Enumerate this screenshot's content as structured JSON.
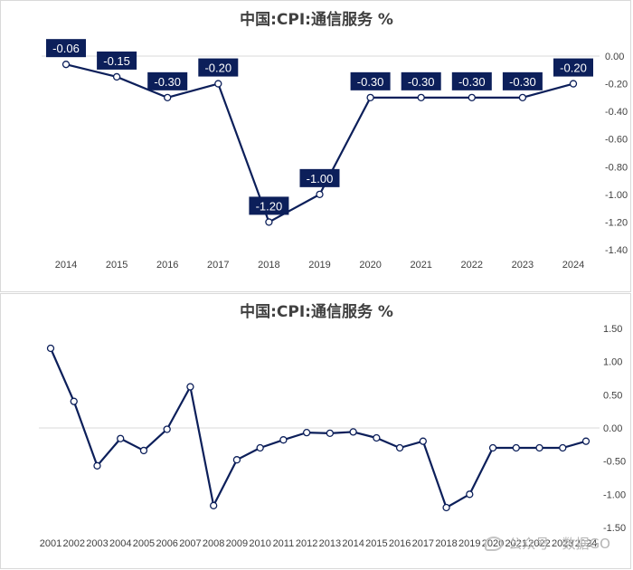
{
  "chart_data": [
    {
      "type": "line",
      "title": "中国:CPI:通信服务 %",
      "x": [
        "2014",
        "2015",
        "2016",
        "2017",
        "2018",
        "2019",
        "2020",
        "2021",
        "2022",
        "2023",
        "2024"
      ],
      "series": [
        {
          "values": [
            -0.06,
            -0.15,
            -0.3,
            -0.2,
            -1.2,
            -1.0,
            -0.3,
            -0.3,
            -0.3,
            -0.3,
            -0.2
          ]
        }
      ],
      "data_labels": [
        "-0.06",
        "-0.15",
        "-0.30",
        "-0.20",
        "-1.20",
        "-1.00",
        "-0.30",
        "-0.30",
        "-0.30",
        "-0.30",
        "-0.20"
      ],
      "ylim": [
        -1.4,
        0.0
      ],
      "yticks": [
        0.0,
        -0.2,
        -0.4,
        -0.6,
        -0.8,
        -1.0,
        -1.2,
        -1.4
      ],
      "ytick_labels": [
        "0.00",
        "-0.20",
        "-0.40",
        "-0.60",
        "-0.80",
        "-1.00",
        "-1.20",
        "-1.40"
      ],
      "y_axis_side": "right",
      "grid": false,
      "line_color": "#0c1f5a",
      "label_bg": "#0c1f5a"
    },
    {
      "type": "line",
      "title": "中国:CPI:通信服务 %",
      "x": [
        "2001",
        "2002",
        "2003",
        "2004",
        "2005",
        "2006",
        "2007",
        "2008",
        "2009",
        "2010",
        "2011",
        "2012",
        "2013",
        "2014",
        "2015",
        "2016",
        "2017",
        "2018",
        "2019",
        "2020",
        "2021",
        "2022",
        "2023",
        "2024"
      ],
      "series": [
        {
          "values": [
            1.2,
            0.4,
            -0.57,
            -0.16,
            -0.34,
            -0.02,
            0.62,
            -1.17,
            -0.48,
            -0.3,
            -0.18,
            -0.07,
            -0.08,
            -0.06,
            -0.15,
            -0.3,
            -0.2,
            -1.2,
            -1.0,
            -0.3,
            -0.3,
            -0.3,
            -0.3,
            -0.2
          ]
        }
      ],
      "ylim": [
        -1.5,
        1.5
      ],
      "yticks": [
        1.5,
        1.0,
        0.5,
        0.0,
        -0.5,
        -1.0,
        -1.5
      ],
      "ytick_labels": [
        "1.50",
        "1.00",
        "0.50",
        "0.00",
        "-0.50",
        "-1.00",
        "-1.50"
      ],
      "y_axis_side": "right",
      "grid": false,
      "line_color": "#0c1f5a"
    }
  ],
  "watermark": {
    "text": "公众号 · 数据GO",
    "icon": "wechat-icon"
  }
}
